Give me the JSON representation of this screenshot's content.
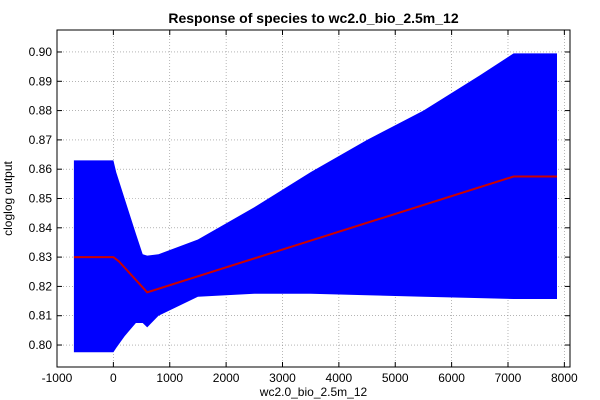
{
  "chart_data": {
    "type": "area",
    "title": "Response of species to wc2.0_bio_2.5m_12",
    "xlabel": "wc2.0_bio_2.5m_12",
    "ylabel": "cloglog output",
    "xlim": [
      -1000,
      8100
    ],
    "ylim": [
      0.7925,
      0.9075
    ],
    "xticks": [
      -1000,
      0,
      1000,
      2000,
      3000,
      4000,
      5000,
      6000,
      7000,
      8000
    ],
    "yticks": [
      0.8,
      0.81,
      0.82,
      0.83,
      0.84,
      0.85,
      0.86,
      0.87,
      0.88,
      0.89,
      0.9
    ],
    "grid": true,
    "legend": false,
    "band": {
      "color": "#0000ff",
      "x": [
        -700,
        0,
        50,
        200,
        400,
        520,
        600,
        800,
        1500,
        2500,
        3500,
        4500,
        5500,
        6500,
        7100,
        7870
      ],
      "upper": [
        0.863,
        0.863,
        0.859,
        0.85,
        0.838,
        0.831,
        0.8305,
        0.831,
        0.836,
        0.847,
        0.859,
        0.87,
        0.88,
        0.892,
        0.8995,
        0.8995
      ],
      "lower": [
        0.7975,
        0.7975,
        0.799,
        0.803,
        0.8075,
        0.8075,
        0.806,
        0.81,
        0.8165,
        0.8175,
        0.8175,
        0.817,
        0.8165,
        0.816,
        0.8157,
        0.8157
      ]
    },
    "series": [
      {
        "color": "#cc0000",
        "x": [
          -700,
          0,
          100,
          600,
          7100,
          7870
        ],
        "y": [
          0.83,
          0.83,
          0.8285,
          0.818,
          0.8575,
          0.8575
        ]
      }
    ]
  }
}
